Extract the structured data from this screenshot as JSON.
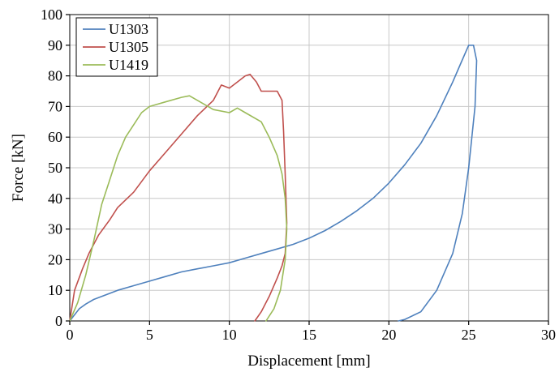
{
  "chart_data": {
    "type": "line",
    "xlabel": "Displacement [mm]",
    "ylabel": "Force [kN]",
    "xlim": [
      0,
      30
    ],
    "ylim": [
      0,
      100
    ],
    "x_ticks": [
      0,
      5,
      10,
      15,
      20,
      25,
      30
    ],
    "y_ticks": [
      0,
      10,
      20,
      30,
      40,
      50,
      60,
      70,
      80,
      90,
      100
    ],
    "grid": true,
    "legend_position": "top-left",
    "series": [
      {
        "name": "U1303",
        "color": "#4f81bd",
        "x": [
          0,
          0.3,
          0.6,
          1.0,
          1.5,
          2.0,
          3.0,
          4.0,
          5.0,
          6.0,
          7.0,
          8.0,
          9.0,
          10.0,
          11.0,
          12.0,
          13.0,
          14.0,
          15.0,
          16.0,
          17.0,
          18.0,
          19.0,
          20.0,
          21.0,
          22.0,
          23.0,
          24.0,
          24.5,
          25.0,
          25.3,
          25.5,
          25.4,
          25.0,
          24.6,
          24.0,
          23.0,
          22.0,
          21.0,
          20.6
        ],
        "y": [
          0,
          2,
          4,
          5.5,
          7,
          8,
          10,
          11.5,
          13,
          14.5,
          16,
          17,
          18,
          19,
          20.5,
          22,
          23.5,
          25,
          27,
          29.5,
          32.5,
          36,
          40,
          45,
          51,
          58,
          67,
          78,
          84,
          90,
          90,
          85,
          70,
          50,
          35,
          22,
          10,
          3,
          0.5,
          0
        ]
      },
      {
        "name": "U1305",
        "color": "#c0504d",
        "x": [
          0,
          0.3,
          0.8,
          1.2,
          1.8,
          2.5,
          3.0,
          4.0,
          5.0,
          6.0,
          7.0,
          8.0,
          9.0,
          9.5,
          10.0,
          10.5,
          11.0,
          11.3,
          11.7,
          12.0,
          12.5,
          13.0,
          13.3,
          13.4,
          13.5,
          13.6,
          13.5,
          13.3,
          13.0,
          12.5,
          12.0,
          11.6
        ],
        "y": [
          0,
          10,
          17,
          22,
          28,
          33,
          37,
          42,
          49,
          55,
          61,
          67,
          72,
          77,
          76,
          78,
          80,
          80.5,
          78,
          75,
          75,
          75,
          72,
          62,
          48,
          32,
          22,
          18,
          14,
          8,
          3,
          0
        ]
      },
      {
        "name": "U1419",
        "color": "#9bbb59",
        "x": [
          0,
          0.5,
          1.0,
          1.5,
          2.0,
          2.5,
          3.0,
          3.5,
          4.0,
          4.5,
          5.0,
          6.0,
          7.0,
          7.5,
          8.0,
          9.0,
          10.0,
          10.5,
          11.0,
          12.0,
          12.5,
          13.0,
          13.3,
          13.5,
          13.6,
          13.5,
          13.2,
          12.8,
          12.3
        ],
        "y": [
          0,
          6,
          15,
          26,
          38,
          46,
          54,
          60,
          64,
          68,
          70,
          71.5,
          73,
          73.5,
          72,
          69,
          68,
          69.5,
          68,
          65,
          60,
          54,
          48,
          40,
          30,
          20,
          10,
          4,
          0
        ]
      }
    ]
  }
}
